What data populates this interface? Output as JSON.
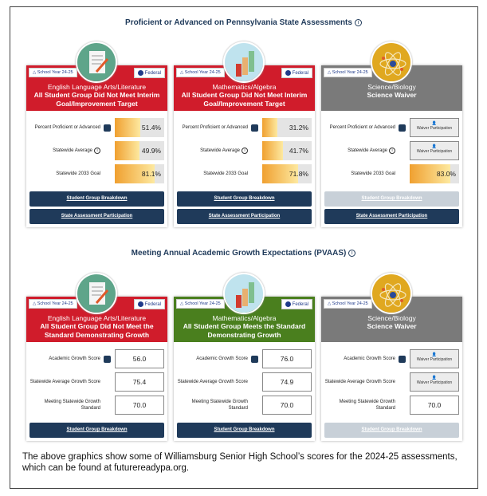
{
  "section1": {
    "title": "Proficient or Advanced on Pennsylvania State Assessments",
    "cards": [
      {
        "school_year": "School Year 24-25",
        "badge": "Federal",
        "subject": "English Language Arts/Literature",
        "status": "All Student Group Did Not Meet Interim Goal/Improvement Target",
        "color": "#d01c2b",
        "rows": [
          {
            "label": "Percent Proficient or Advanced",
            "value": "51.4%",
            "pct": 51.4
          },
          {
            "label": "Statewide Average",
            "value": "49.9%",
            "pct": 49.9
          },
          {
            "label": "Statewide 2033 Goal",
            "value": "81.1%",
            "pct": 81.1
          }
        ],
        "buttons": [
          "Student Group Breakdown",
          "State Assessment Participation"
        ]
      },
      {
        "school_year": "School Year 24-25",
        "badge": "Federal",
        "subject": "Mathematics/Algebra",
        "status": "All Student Group Did Not Meet Interim Goal/Improvement Target",
        "color": "#d01c2b",
        "rows": [
          {
            "label": "Percent Proficient or Advanced",
            "value": "31.2%",
            "pct": 31.2
          },
          {
            "label": "Statewide Average",
            "value": "41.7%",
            "pct": 41.7
          },
          {
            "label": "Statewide 2033 Goal",
            "value": "71.8%",
            "pct": 71.8
          }
        ],
        "buttons": [
          "Student Group Breakdown",
          "State Assessment Participation"
        ]
      },
      {
        "school_year": "School Year 24-25",
        "subject": "Science/Biology",
        "status": "Science Waiver",
        "color": "#7a7a7a",
        "rows": [
          {
            "label": "Percent Proficient or Advanced",
            "value": "Waiver Participation"
          },
          {
            "label": "Statewide Average",
            "value": "Waiver Participation"
          },
          {
            "label": "Statewide 2033 Goal",
            "value": "83.0%",
            "pct": 83.0
          }
        ],
        "buttons": [
          "Student Group Breakdown",
          "State Assessment Participation"
        ]
      }
    ]
  },
  "section2": {
    "title": "Meeting Annual Academic Growth Expectations (PVAAS)",
    "cards": [
      {
        "school_year": "School Year 24-25",
        "badge": "Federal",
        "subject": "English Language Arts/Literature",
        "status": "All Student Group Did Not Meet the Standard Demonstrating Growth",
        "rows": [
          {
            "label": "Academic Growth Score",
            "value": "56.0"
          },
          {
            "label": "Statewide Average Growth Score",
            "value": "75.4"
          },
          {
            "label": "Meeting Statewide Growth Standard",
            "value": "70.0"
          }
        ],
        "button": "Student Group Breakdown"
      },
      {
        "school_year": "School Year 24-25",
        "badge": "Federal",
        "subject": "Mathematics/Algebra",
        "status": "All Student Group Meets the Standard Demonstrating Growth",
        "rows": [
          {
            "label": "Academic Growth Score",
            "value": "76.0"
          },
          {
            "label": "Statewide Average Growth Score",
            "value": "74.9"
          },
          {
            "label": "Meeting Statewide Growth Standard",
            "value": "70.0"
          }
        ],
        "button": "Student Group Breakdown"
      },
      {
        "school_year": "School Year 24-25",
        "subject": "Science/Biology",
        "status": "Science Waiver",
        "rows": [
          {
            "label": "Academic Growth Score",
            "value": "Waiver Participation"
          },
          {
            "label": "Statewide Average Growth Score",
            "value": "Waiver Participation"
          },
          {
            "label": "Meeting Statewide Growth Standard",
            "value": "70.0"
          }
        ],
        "button": "Student Group Breakdown"
      }
    ]
  },
  "caption": "The above graphics show some of Williamsburg Senior High School’s scores for the 2024-25 assessments, which can be found at futurereadypa.org."
}
